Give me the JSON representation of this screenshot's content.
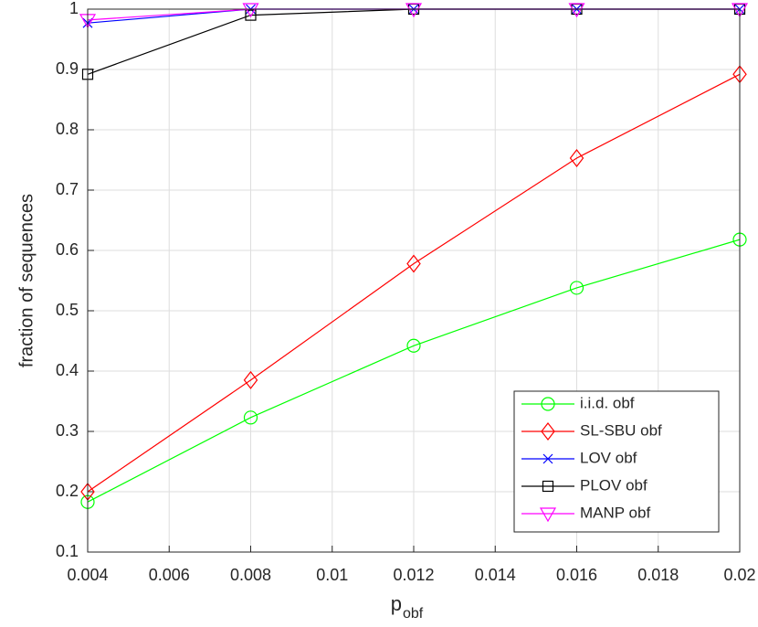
{
  "chart_data": {
    "type": "line",
    "xlabel": "p",
    "xlabel_subscript": "obf",
    "ylabel": "fraction of sequences",
    "x": [
      0.004,
      0.008,
      0.012,
      0.016,
      0.02
    ],
    "xlim": [
      0.004,
      0.02
    ],
    "xticks": [
      0.004,
      0.006,
      0.008,
      0.01,
      0.012,
      0.014,
      0.016,
      0.018,
      0.02
    ],
    "ylim": [
      0.1,
      1
    ],
    "yticks": [
      0.1,
      0.2,
      0.3,
      0.4,
      0.5,
      0.6,
      0.7,
      0.8,
      0.9,
      1
    ],
    "grid": true,
    "legend": "southeast",
    "series": [
      {
        "name": "i.i.d. obf",
        "color": "#00ff00",
        "marker": "circle",
        "values": [
          0.183,
          0.323,
          0.442,
          0.538,
          0.618
        ]
      },
      {
        "name": "SL-SBU obf",
        "color": "#ff0000",
        "marker": "diamond",
        "values": [
          0.2,
          0.385,
          0.578,
          0.753,
          0.892
        ]
      },
      {
        "name": "LOV obf",
        "color": "#0000ff",
        "marker": "x",
        "values": [
          0.977,
          1,
          1,
          1,
          1
        ]
      },
      {
        "name": "PLOV obf",
        "color": "#000000",
        "marker": "square",
        "values": [
          0.892,
          0.99,
          1,
          1,
          1
        ]
      },
      {
        "name": "MANP obf",
        "color": "#ff00ff",
        "marker": "triangle-down",
        "values": [
          0.982,
          1,
          1,
          1,
          1
        ]
      }
    ]
  }
}
